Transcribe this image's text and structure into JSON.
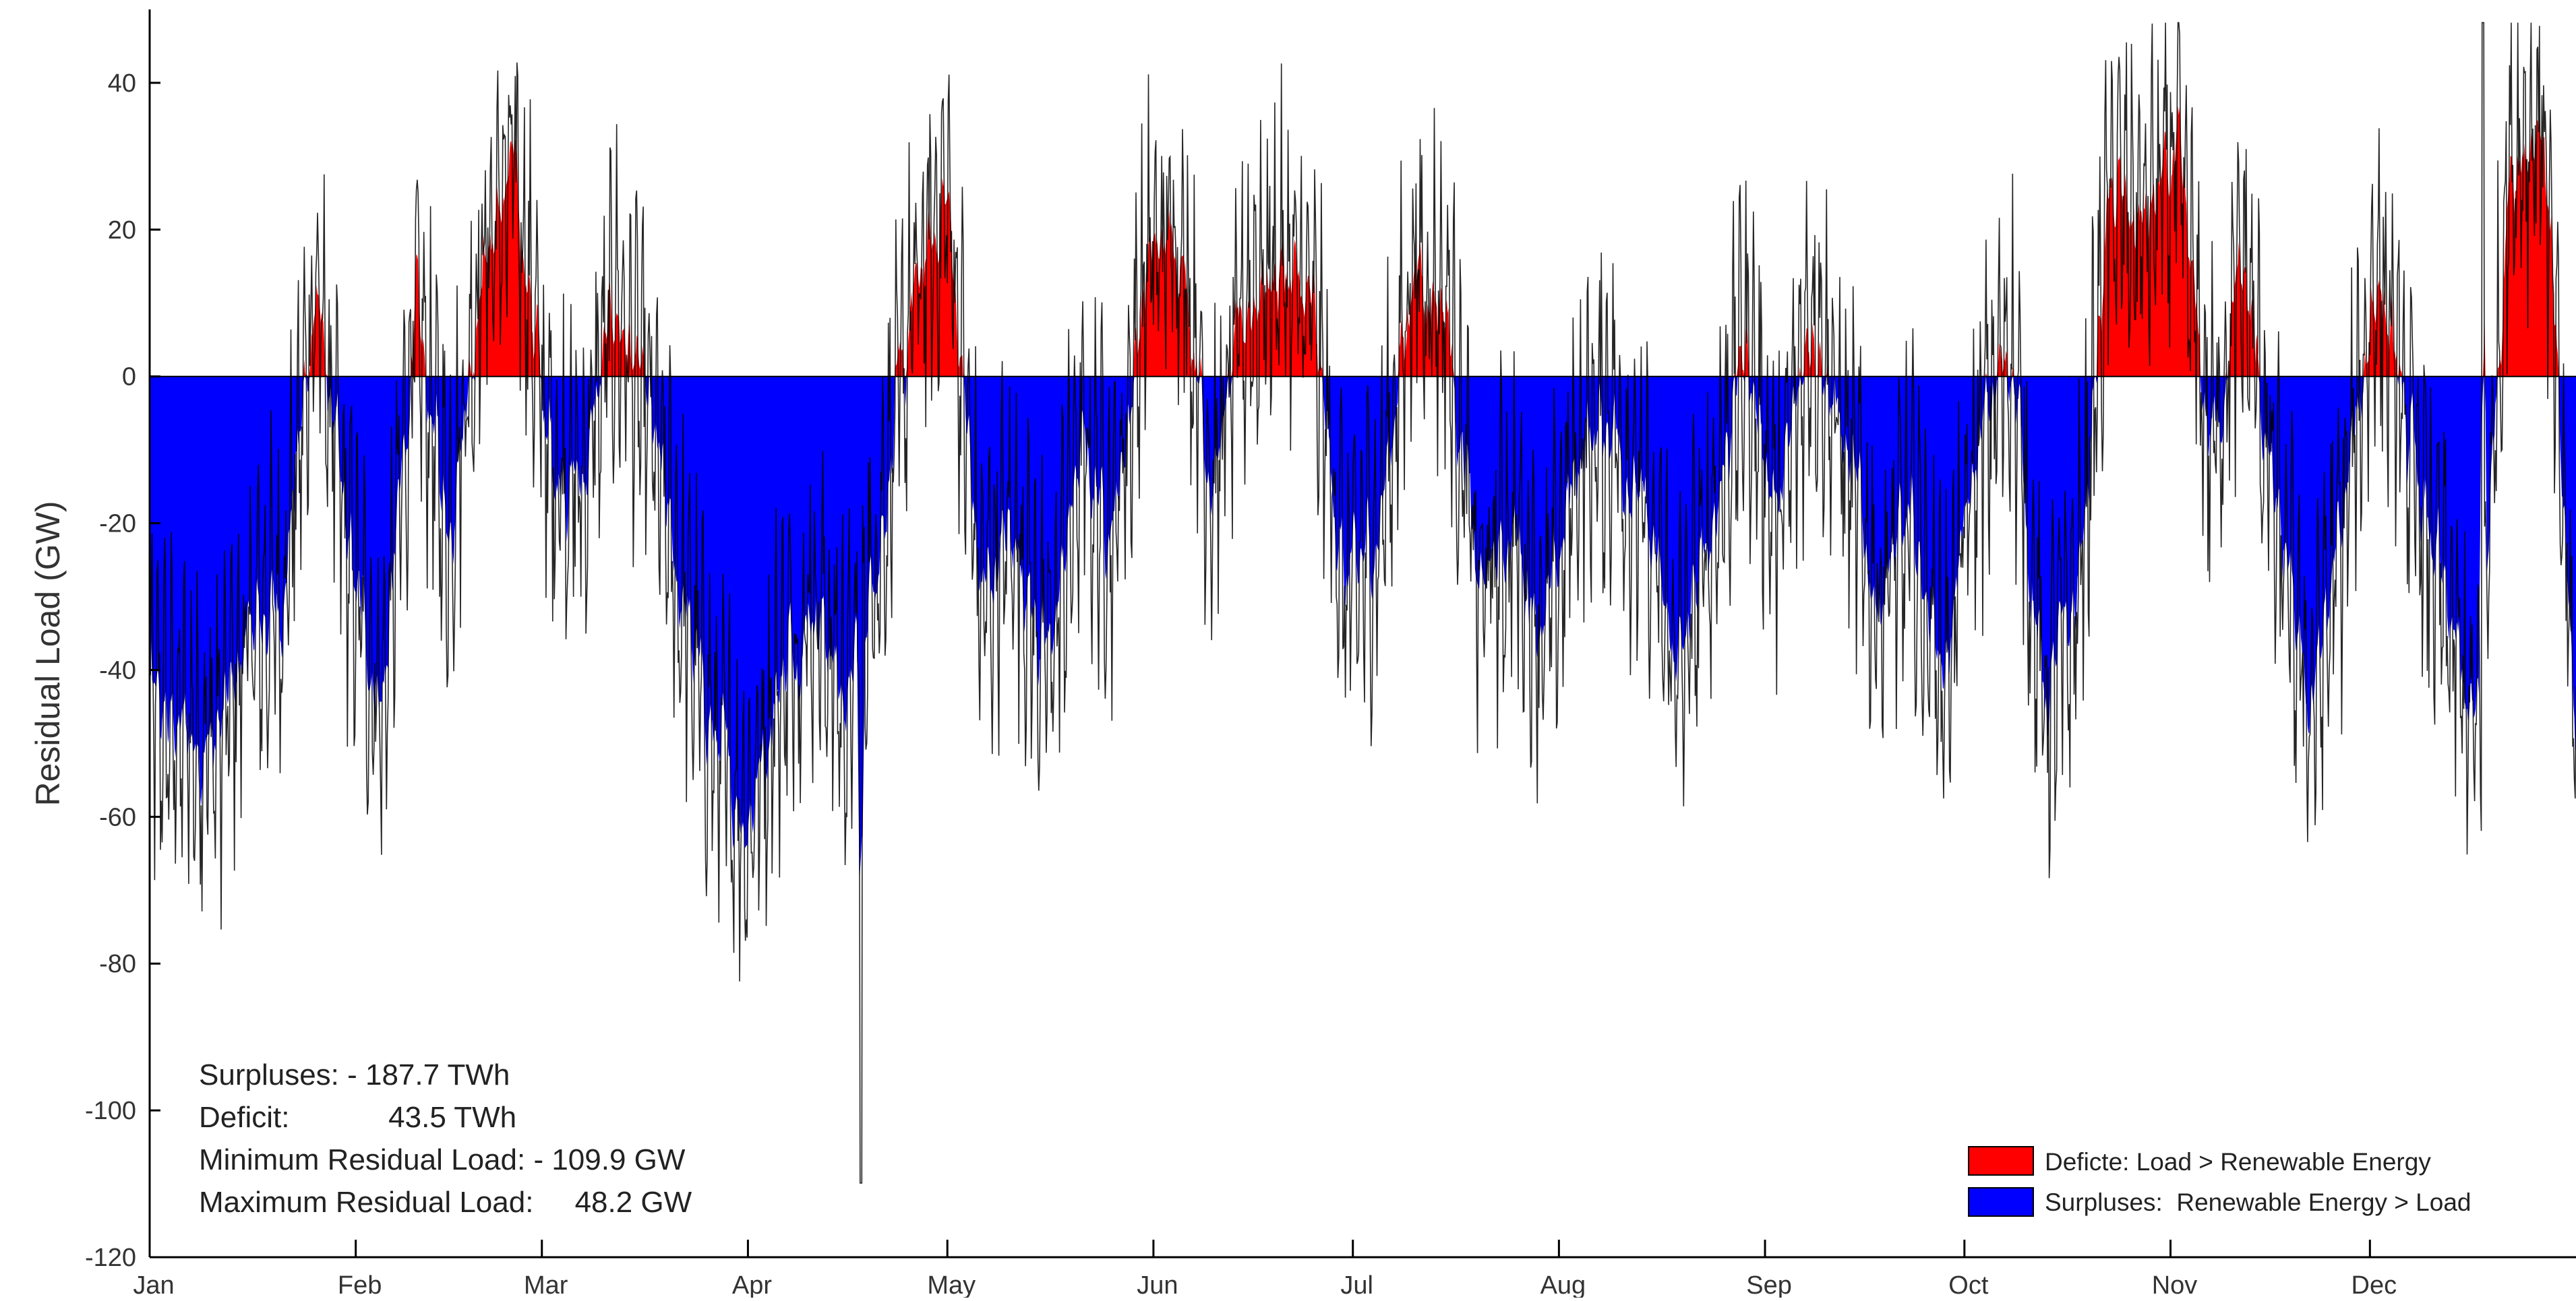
{
  "chart_data": {
    "type": "bar",
    "title": "",
    "xlabel": "",
    "ylabel": "Residual Load    (GW)",
    "ylim": [
      -120,
      50
    ],
    "yticks": [
      -120,
      -100,
      -80,
      -60,
      -40,
      -20,
      0,
      20,
      40
    ],
    "x_range_days": [
      0,
      365
    ],
    "grid": false,
    "legend_position": "bottom-right",
    "months": [
      {
        "label": "Jan",
        "day": 0
      },
      {
        "label": "Feb",
        "day": 31
      },
      {
        "label": "Mar",
        "day": 59
      },
      {
        "label": "Apr",
        "day": 90
      },
      {
        "label": "May",
        "day": 120
      },
      {
        "label": "Jun",
        "day": 151
      },
      {
        "label": "Jul",
        "day": 181
      },
      {
        "label": "Aug",
        "day": 212
      },
      {
        "label": "Sep",
        "day": 243
      },
      {
        "label": "Oct",
        "day": 273
      },
      {
        "label": "Nov",
        "day": 304
      },
      {
        "label": "Dec",
        "day": 334
      }
    ],
    "series": [
      {
        "name": "Deficte: Load > Renewable Energy",
        "color": "#ff0000"
      },
      {
        "name": "Surpluses:  Renewable Energy > Load",
        "color": "#0000ff"
      }
    ],
    "envelope": {
      "day": [
        0,
        5,
        10,
        15,
        20,
        25,
        30,
        35,
        40,
        45,
        50,
        55,
        60,
        65,
        70,
        75,
        80,
        85,
        90,
        95,
        100,
        105,
        110,
        115,
        120,
        125,
        130,
        135,
        140,
        145,
        150,
        155,
        160,
        165,
        170,
        175,
        180,
        185,
        190,
        195,
        200,
        205,
        210,
        215,
        220,
        225,
        230,
        235,
        240,
        245,
        250,
        255,
        260,
        265,
        270,
        275,
        280,
        285,
        290,
        295,
        300,
        305,
        310,
        315,
        320,
        325,
        330,
        335,
        340,
        345,
        350,
        355,
        360,
        365
      ],
      "gw": [
        -45,
        -48,
        -50,
        -35,
        -30,
        12,
        -25,
        -45,
        8,
        -20,
        15,
        28,
        -10,
        -15,
        10,
        -5,
        -30,
        -50,
        -60,
        -40,
        -30,
        -45,
        -20,
        10,
        25,
        -30,
        -20,
        -40,
        -10,
        -20,
        15,
        20,
        -15,
        10,
        15,
        8,
        -30,
        -20,
        15,
        10,
        -30,
        -20,
        -35,
        -10,
        -5,
        -20,
        -40,
        -20,
        5,
        -20,
        10,
        -10,
        -30,
        -20,
        -40,
        -10,
        5,
        -45,
        -30,
        25,
        20,
        30,
        -10,
        15,
        -20,
        -45,
        -20,
        15,
        -10,
        -30,
        -50,
        30,
        35,
        -50
      ],
      "peak_max_gw": 48.2,
      "peak_max_day": 351,
      "peak_min_gw": -109.9,
      "peak_min_day": 107
    },
    "annotations": [
      "Surpluses: - 187.7 TWh",
      "Deficit:            43.5 TWh",
      "Minimum Residual Load: - 109.9 GW",
      "Maximum Residual Load:     48.2 GW"
    ]
  },
  "colors": {
    "deficit": "#ff0000",
    "surplus": "#0000ff",
    "trace": "#000000",
    "axis": "#000000"
  }
}
